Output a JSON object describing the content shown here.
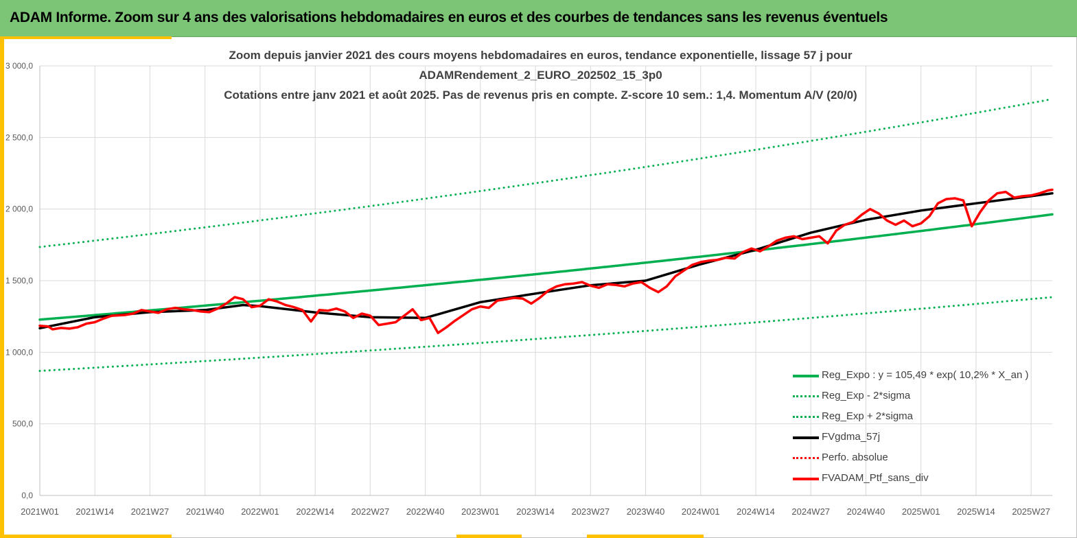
{
  "banner": {
    "title": "ADAM Informe. Zoom sur 4 ans des valorisations hebdomadaires en euros et des courbes de tendances sans les revenus éventuels"
  },
  "colors": {
    "banner_bg": "#7cc576",
    "accent": "#ffc000",
    "reg_green": "#00b050",
    "gdma_black": "#000000",
    "ptf_red": "#ff0000"
  },
  "chart_data": {
    "type": "line",
    "title_lines": [
      "Zoom depuis janvier 2021 des cours moyens hebdomadaires  en euros, tendance exponentielle, lissage 57 j pour",
      "ADAMRendement_2_EURO_202502_15_3p0",
      "Cotations  entre janv 2021 et août 2025. Pas de revenus pris en compte. Z-score 10 sem.: 1,4. Momentum A/V (20/0)"
    ],
    "xlabel": "",
    "ylabel": "",
    "ylim": [
      0,
      3000
    ],
    "y_ticks": [
      "0,0",
      "500,0",
      "1 000,0",
      "1 500,0",
      "2 000,0",
      "2 500,0",
      "3 000,0"
    ],
    "x_ticks": [
      "2021W01",
      "2021W14",
      "2021W27",
      "2021W40",
      "2022W01",
      "2022W14",
      "2022W27",
      "2022W40",
      "2023W01",
      "2023W14",
      "2023W27",
      "2023W40",
      "2024W01",
      "2024W14",
      "2024W27",
      "2024W40",
      "2025W01",
      "2025W14",
      "2025W27"
    ],
    "x_range_weeks": [
      0,
      239
    ],
    "grid": true,
    "legend_position": "bottom-right",
    "series": [
      {
        "name": "Reg_Expo : y = 105,49 * exp( 10,2% *  X_an )",
        "style": "solid",
        "color": "#00b050",
        "x": [
          0,
          239
        ],
        "y": [
          1228,
          1963
        ],
        "curve": "exponential"
      },
      {
        "name": "Reg_Exp - 2*sigma",
        "style": "dotted",
        "color": "#00b050",
        "x": [
          0,
          239
        ],
        "y": [
          870,
          1385
        ],
        "curve": "exponential"
      },
      {
        "name": "Reg_Exp + 2*sigma",
        "style": "dotted",
        "color": "#00b050",
        "x": [
          0,
          239
        ],
        "y": [
          1735,
          2768
        ],
        "curve": "exponential"
      },
      {
        "name": "FVgdma_57j",
        "style": "solid",
        "color": "#000000",
        "x": [
          0,
          13,
          26,
          39,
          48,
          52,
          65,
          78,
          91,
          104,
          117,
          130,
          143,
          156,
          169,
          182,
          195,
          208,
          221,
          234,
          239
        ],
        "y": [
          1168,
          1245,
          1280,
          1295,
          1330,
          1322,
          1278,
          1245,
          1240,
          1350,
          1410,
          1468,
          1500,
          1615,
          1715,
          1835,
          1925,
          1990,
          2040,
          2090,
          2110
        ]
      },
      {
        "name": "Perfo. absolue",
        "style": "dotted",
        "color": "#ff0000",
        "x": [],
        "y": []
      },
      {
        "name": "FVADAM_Ptf_sans_div",
        "style": "solid",
        "color": "#ff0000",
        "x": [
          0,
          2,
          3,
          5,
          7,
          9,
          11,
          13,
          15,
          17,
          20,
          22,
          24,
          26,
          28,
          30,
          32,
          34,
          36,
          38,
          40,
          42,
          44,
          46,
          48,
          50,
          52,
          54,
          56,
          58,
          60,
          62,
          64,
          66,
          68,
          70,
          72,
          74,
          76,
          78,
          80,
          82,
          84,
          86,
          88,
          90,
          92,
          94,
          96,
          98,
          100,
          102,
          104,
          106,
          108,
          110,
          112,
          114,
          116,
          118,
          120,
          122,
          124,
          126,
          128,
          130,
          132,
          134,
          136,
          138,
          140,
          142,
          144,
          146,
          148,
          150,
          152,
          154,
          156,
          158,
          160,
          162,
          164,
          166,
          168,
          170,
          172,
          174,
          176,
          178,
          180,
          182,
          184,
          186,
          188,
          190,
          192,
          194,
          196,
          198,
          200,
          202,
          204,
          206,
          208,
          210,
          212,
          214,
          216,
          218,
          220,
          222,
          224,
          226,
          228,
          230,
          232,
          234,
          236,
          238,
          239
        ],
        "y": [
          1185,
          1180,
          1160,
          1170,
          1165,
          1175,
          1200,
          1210,
          1235,
          1255,
          1260,
          1270,
          1295,
          1285,
          1275,
          1300,
          1310,
          1300,
          1295,
          1285,
          1280,
          1305,
          1340,
          1385,
          1370,
          1315,
          1325,
          1370,
          1355,
          1330,
          1315,
          1295,
          1215,
          1295,
          1290,
          1305,
          1285,
          1240,
          1270,
          1255,
          1190,
          1200,
          1210,
          1255,
          1300,
          1225,
          1240,
          1135,
          1175,
          1220,
          1260,
          1300,
          1320,
          1310,
          1360,
          1370,
          1380,
          1375,
          1340,
          1380,
          1430,
          1460,
          1475,
          1480,
          1490,
          1465,
          1450,
          1475,
          1470,
          1460,
          1480,
          1490,
          1450,
          1420,
          1460,
          1530,
          1570,
          1610,
          1630,
          1640,
          1645,
          1660,
          1655,
          1700,
          1725,
          1705,
          1740,
          1780,
          1800,
          1810,
          1790,
          1800,
          1810,
          1760,
          1850,
          1890,
          1910,
          1960,
          2000,
          1970,
          1920,
          1890,
          1920,
          1880,
          1900,
          1950,
          2040,
          2070,
          2075,
          2060,
          1880,
          1980,
          2060,
          2110,
          2120,
          2080,
          2090,
          2095,
          2110,
          2130,
          2135
        ]
      }
    ]
  }
}
